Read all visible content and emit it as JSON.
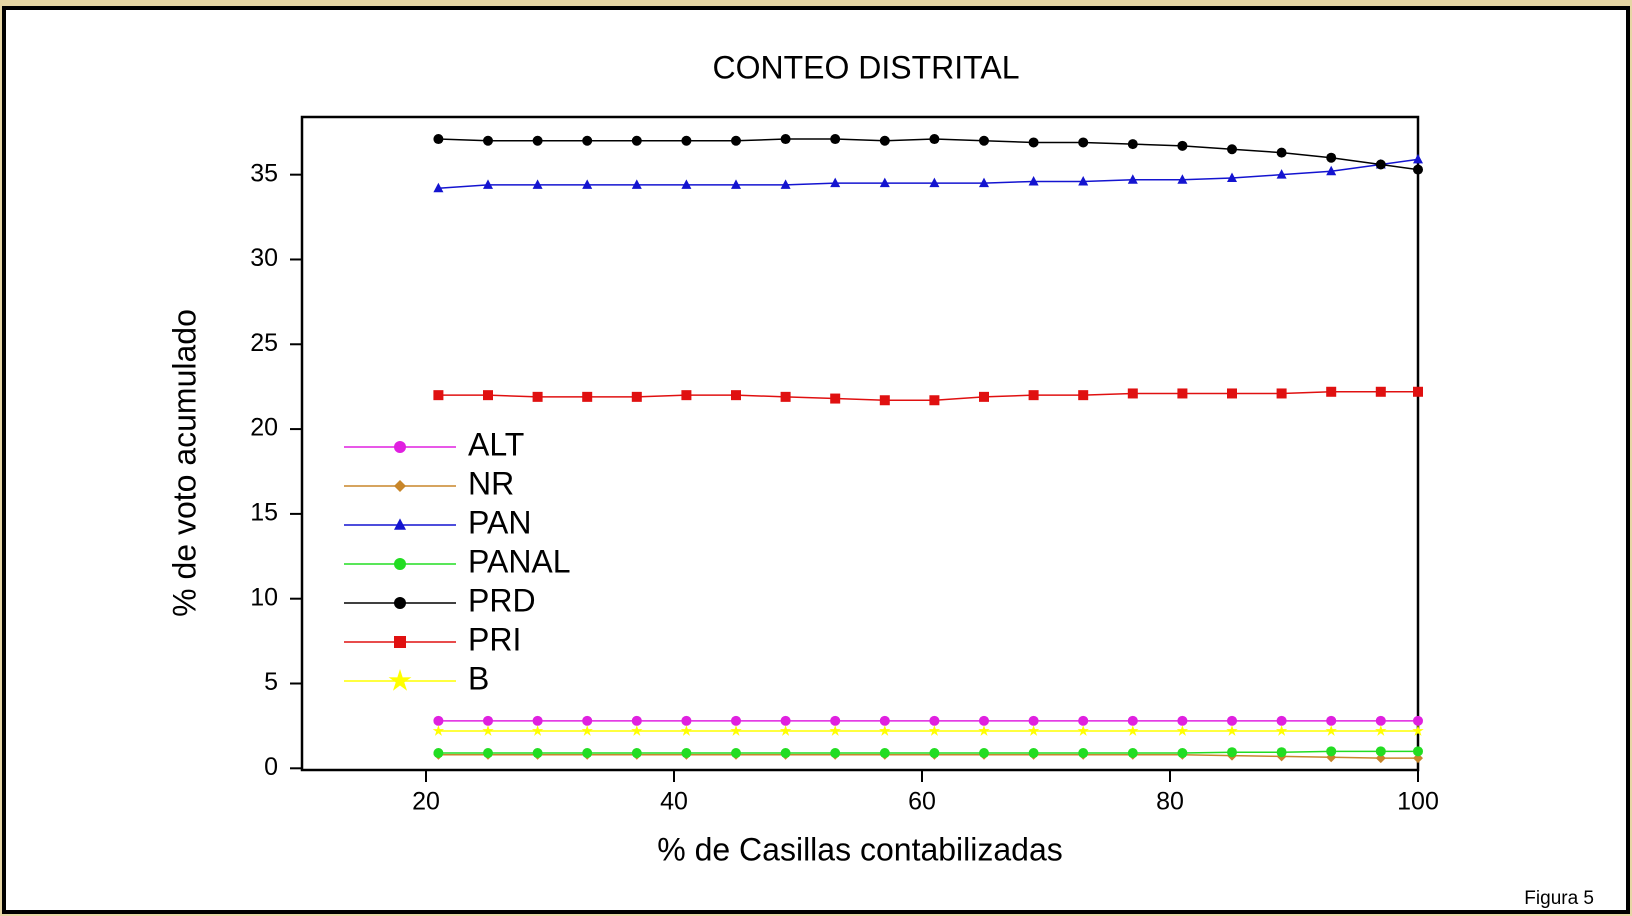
{
  "chart_data": {
    "type": "line",
    "title": "CONTEO DISTRITAL",
    "x_label": "% de Casillas contabilizadas",
    "y_label": "% de voto acumulado",
    "note": "Figura 5",
    "x": [
      21,
      25,
      29,
      33,
      37,
      41,
      45,
      49,
      53,
      57,
      61,
      65,
      69,
      73,
      77,
      81,
      85,
      89,
      93,
      97,
      100
    ],
    "series": [
      {
        "name": "ALT",
        "color": "#e020e0",
        "marker": "circle",
        "values": [
          2.8,
          2.8,
          2.8,
          2.8,
          2.8,
          2.8,
          2.8,
          2.8,
          2.8,
          2.8,
          2.8,
          2.8,
          2.8,
          2.8,
          2.8,
          2.8,
          2.8,
          2.8,
          2.8,
          2.8,
          2.8
        ]
      },
      {
        "name": "NR",
        "color": "#c8862a",
        "marker": "diamond",
        "values": [
          0.8,
          0.8,
          0.8,
          0.8,
          0.8,
          0.8,
          0.8,
          0.8,
          0.8,
          0.8,
          0.8,
          0.8,
          0.8,
          0.8,
          0.8,
          0.8,
          0.75,
          0.7,
          0.65,
          0.6,
          0.6
        ]
      },
      {
        "name": "PAN",
        "color": "#1414d0",
        "marker": "triangle",
        "values": [
          34.2,
          34.4,
          34.4,
          34.4,
          34.4,
          34.4,
          34.4,
          34.4,
          34.5,
          34.5,
          34.5,
          34.5,
          34.6,
          34.6,
          34.7,
          34.7,
          34.8,
          35.0,
          35.2,
          35.6,
          35.9
        ]
      },
      {
        "name": "PANAL",
        "color": "#22dd22",
        "marker": "circle",
        "values": [
          0.9,
          0.9,
          0.9,
          0.9,
          0.9,
          0.9,
          0.9,
          0.9,
          0.9,
          0.9,
          0.9,
          0.9,
          0.9,
          0.9,
          0.9,
          0.9,
          0.95,
          0.95,
          1.0,
          1.0,
          1.0
        ]
      },
      {
        "name": "PRD",
        "color": "#000000",
        "marker": "circle",
        "values": [
          37.1,
          37.0,
          37.0,
          37.0,
          37.0,
          37.0,
          37.0,
          37.1,
          37.1,
          37.0,
          37.1,
          37.0,
          36.9,
          36.9,
          36.8,
          36.7,
          36.5,
          36.3,
          36.0,
          35.6,
          35.3
        ]
      },
      {
        "name": "PRI",
        "color": "#e01010",
        "marker": "square",
        "values": [
          22.0,
          22.0,
          21.9,
          21.9,
          21.9,
          22.0,
          22.0,
          21.9,
          21.8,
          21.7,
          21.7,
          21.9,
          22.0,
          22.0,
          22.1,
          22.1,
          22.1,
          22.1,
          22.2,
          22.2,
          22.2
        ]
      },
      {
        "name": "B",
        "color": "#ffff00",
        "marker": "star",
        "values": [
          2.2,
          2.2,
          2.2,
          2.2,
          2.2,
          2.2,
          2.2,
          2.2,
          2.2,
          2.2,
          2.2,
          2.2,
          2.2,
          2.2,
          2.2,
          2.2,
          2.2,
          2.2,
          2.2,
          2.2,
          2.2
        ]
      }
    ],
    "xlim": [
      10,
      100
    ],
    "xticks": [
      20,
      40,
      60,
      80,
      100
    ],
    "ylim": [
      -0.1,
      38.4
    ],
    "yticks": [
      0,
      5,
      10,
      15,
      20,
      25,
      30,
      35
    ],
    "legend_position": "left"
  }
}
